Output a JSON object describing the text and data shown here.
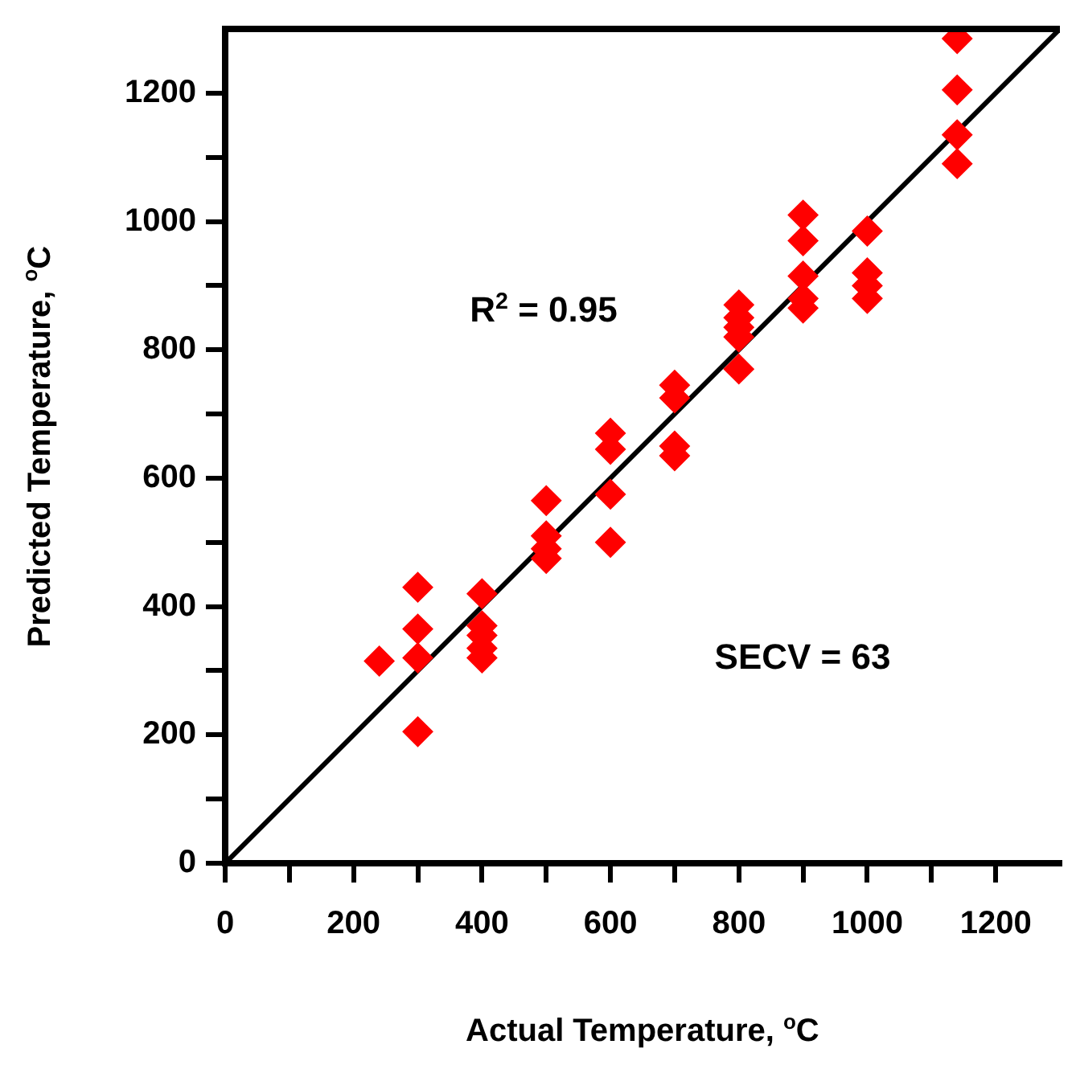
{
  "chart_data": {
    "type": "scatter",
    "xlabel": "Actual Temperature, $^{o}$C",
    "ylabel": "Predicted Temperature, $^{o}$C",
    "annotations": [
      "R$^{2}$ = 0.95",
      "SECV = 63"
    ],
    "xlim": [
      0,
      1300
    ],
    "ylim": [
      0,
      1300
    ],
    "xticks": [
      0,
      {
        "value": 100,
        "label": null
      },
      200,
      {
        "value": 300,
        "label": null
      },
      400,
      {
        "value": 500,
        "label": null
      },
      600,
      {
        "value": 700,
        "label": null
      },
      800,
      {
        "value": 900,
        "label": null
      },
      1000,
      {
        "value": 1100,
        "label": null
      },
      1200
    ],
    "yticks": [
      0,
      {
        "value": 100,
        "label": null
      },
      200,
      {
        "value": 300,
        "label": null
      },
      400,
      {
        "value": 500,
        "label": null
      },
      600,
      {
        "value": 700,
        "label": null
      },
      800,
      {
        "value": 900,
        "label": null
      },
      1000,
      {
        "value": 1100,
        "label": null
      },
      1200
    ],
    "grid": false,
    "legend": false,
    "series": [
      {
        "marker": "diamond",
        "color": "#ff0000",
        "x": [
          240,
          300,
          300,
          300,
          300,
          400,
          400,
          400,
          400,
          400,
          500,
          500,
          500,
          500,
          600,
          600,
          600,
          600,
          700,
          700,
          700,
          700,
          800,
          800,
          800,
          800,
          800,
          900,
          900,
          900,
          900,
          900,
          1000,
          1000,
          1000,
          1000,
          1140,
          1140,
          1140,
          1140
        ],
        "values": [
          315,
          430,
          365,
          320,
          205,
          420,
          370,
          355,
          335,
          320,
          565,
          510,
          490,
          475,
          670,
          645,
          575,
          500,
          745,
          725,
          650,
          635,
          870,
          850,
          835,
          820,
          770,
          1010,
          970,
          915,
          880,
          865,
          985,
          920,
          900,
          880,
          1285,
          1205,
          1135,
          1090
        ]
      },
      {
        "type": "line",
        "color": "#000000",
        "x": [
          0,
          1300
        ],
        "values": [
          0,
          1300
        ]
      }
    ]
  }
}
